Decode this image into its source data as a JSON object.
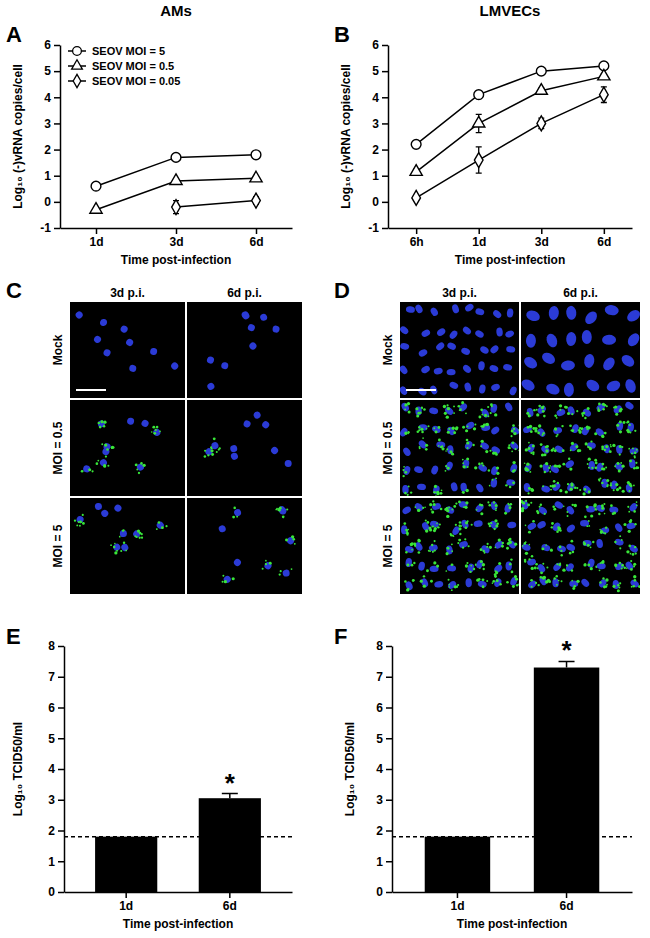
{
  "chart_data": [
    {
      "type": "line",
      "title": "AMs",
      "categories": [
        "1d",
        "3d",
        "6d"
      ],
      "x_label": "Time post-infection",
      "y_label": "Log₁₀ (-)vRNA copies/cell",
      "ylim": [
        -1,
        6
      ],
      "yticks": [
        -1,
        0,
        1,
        2,
        3,
        4,
        5,
        6
      ],
      "grid": false,
      "legend": "top-left",
      "series": [
        {
          "name": "SEOV MOI = 5",
          "color": "#000000",
          "marker": "circle",
          "values": [
            0.6,
            1.7,
            1.8
          ],
          "errors": [
            0.05,
            0.05,
            0.05
          ]
        },
        {
          "name": "SEOV MOI = 0.5",
          "color": "#000000",
          "marker": "triangle",
          "values": [
            -0.3,
            0.8,
            0.9
          ],
          "errors": [
            0.1,
            0.05,
            0.05
          ]
        },
        {
          "name": "SEOV MOI = 0.05",
          "color": "#000000",
          "marker": "diamond",
          "values": [
            null,
            -0.2,
            0.05
          ],
          "errors": [
            null,
            0.25,
            0.15
          ]
        }
      ]
    },
    {
      "type": "line",
      "title": "LMVECs",
      "categories": [
        "6h",
        "1d",
        "3d",
        "6d"
      ],
      "x_label": "Time post-infection",
      "y_label": "Log₁₀ (-)vRNA copies/cell",
      "ylim": [
        -1,
        6
      ],
      "yticks": [
        -1,
        0,
        1,
        2,
        3,
        4,
        5,
        6
      ],
      "grid": false,
      "series": [
        {
          "color": "#000000",
          "marker": "circle",
          "values": [
            2.2,
            4.1,
            5.0,
            5.2
          ],
          "errors": [
            0.1,
            0.15,
            0.05,
            0.1
          ]
        },
        {
          "color": "#000000",
          "marker": "triangle",
          "values": [
            1.15,
            3.0,
            4.25,
            4.8
          ],
          "errors": [
            0.1,
            0.35,
            0.1,
            0.1
          ]
        },
        {
          "color": "#000000",
          "marker": "diamond",
          "values": [
            0.15,
            1.6,
            3.0,
            4.1
          ],
          "errors": [
            0.05,
            0.5,
            0.2,
            0.3
          ]
        }
      ]
    },
    {
      "type": "bar",
      "categories": [
        "1d",
        "6d"
      ],
      "values": [
        1.8,
        3.05
      ],
      "errors": [
        null,
        0.15
      ],
      "color": "#000000",
      "reference_line": 1.8,
      "annotations": [
        {
          "text": "*",
          "x": "6d"
        }
      ],
      "x_label": "Time post-infection",
      "y_label": "Log₁₀ TCID50/ml",
      "ylim": [
        0,
        8
      ],
      "yticks": [
        0,
        1,
        2,
        3,
        4,
        5,
        6,
        7,
        8
      ],
      "grid": false
    },
    {
      "type": "bar",
      "categories": [
        "1d",
        "6d"
      ],
      "values": [
        1.8,
        7.3
      ],
      "errors": [
        null,
        0.2
      ],
      "color": "#000000",
      "reference_line": 1.8,
      "annotations": [
        {
          "text": "*",
          "x": "6d"
        }
      ],
      "x_label": "Time post-infection",
      "y_label": "Log₁₀ TCID50/ml",
      "ylim": [
        0,
        8
      ],
      "yticks": [
        0,
        1,
        2,
        3,
        4,
        5,
        6,
        7,
        8
      ],
      "grid": false
    }
  ],
  "figure": {
    "panel_labels": [
      "A",
      "B",
      "C",
      "D",
      "E",
      "F"
    ],
    "micrographs": [
      {
        "columns": [
          "3d p.i.",
          "6d p.i."
        ],
        "rows": [
          "Mock",
          "MOI = 0.5",
          "MOI = 5"
        ]
      },
      {
        "columns": [
          "3d p.i.",
          "6d p.i."
        ],
        "rows": [
          "Mock",
          "MOI = 0.5",
          "MOI = 5"
        ]
      }
    ]
  }
}
